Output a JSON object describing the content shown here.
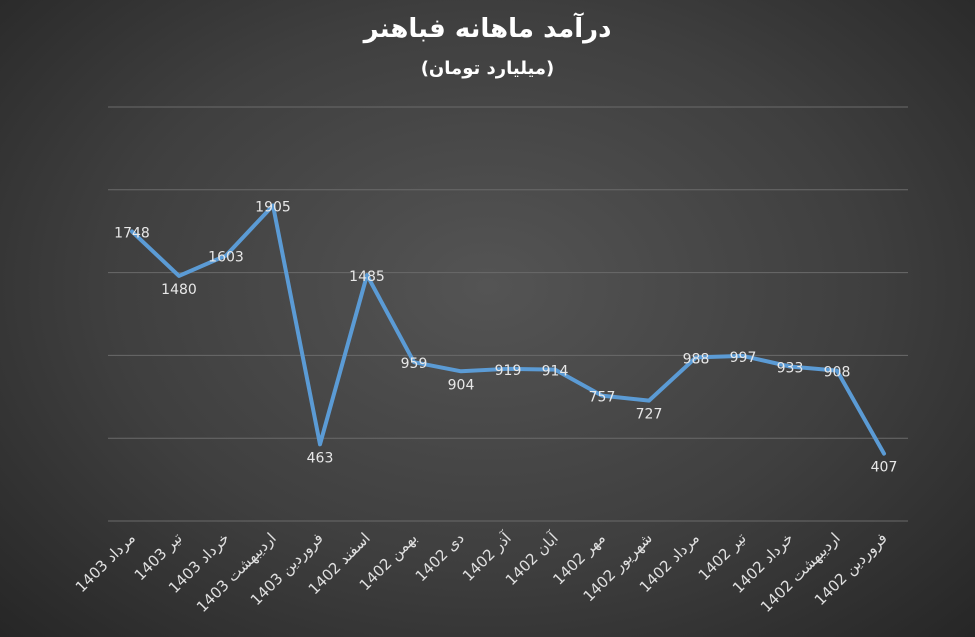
{
  "chart_data": {
    "type": "line",
    "title": "درآمد ماهانه فباهنر",
    "subtitle": "(میلیارد تومان)",
    "categories": [
      "مرداد 1403",
      "تیر 1403",
      "خرداد 1403",
      "اردیبهشت 1403",
      "فروردین 1403",
      "اسفند 1402",
      "بهمن 1402",
      "دی 1402",
      "آذر 1402",
      "آبان 1402",
      "مهر 1402",
      "شهریور 1402",
      "مرداد 1402",
      "تیر 1402",
      "خرداد 1402",
      "اردیبهشت 1402",
      "فروردین 1402"
    ],
    "series": [
      {
        "values": [
          1748,
          1480,
          1603,
          1905,
          463,
          1485,
          959,
          904,
          919,
          914,
          757,
          727,
          988,
          997,
          933,
          908,
          407
        ]
      }
    ],
    "ylim": [
      0,
      2500
    ],
    "y_gridlines": [
      0,
      500,
      1000,
      1500,
      2000,
      2500
    ],
    "grid": true,
    "y_axis_labels_visible": false,
    "line_color": "#5b9bd5",
    "background_color": "#404040"
  }
}
